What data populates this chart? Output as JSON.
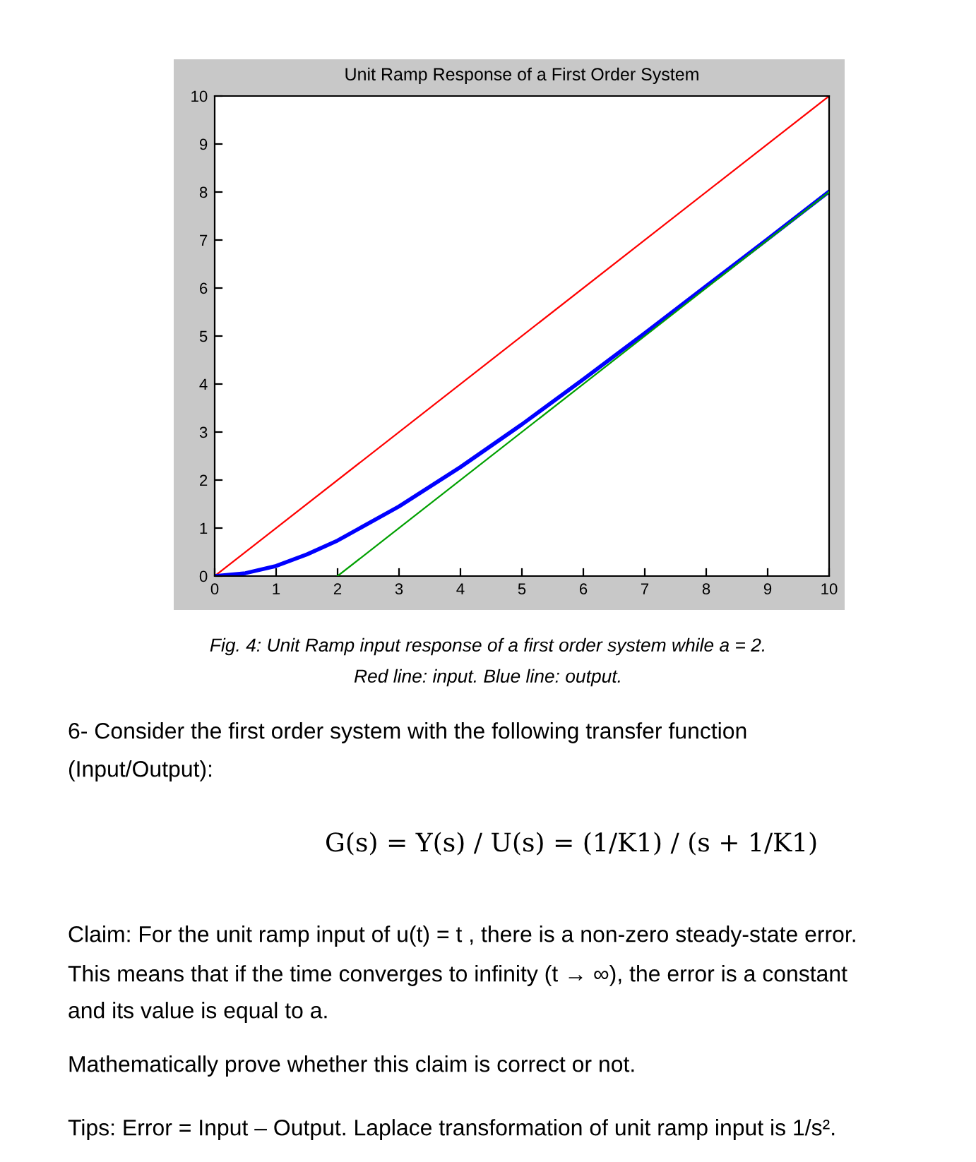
{
  "chart_data": {
    "type": "line",
    "title": "Unit Ramp Response of a First Order System",
    "xlim": [
      0,
      10
    ],
    "ylim": [
      0,
      10
    ],
    "xticks": [
      0,
      1,
      2,
      3,
      4,
      5,
      6,
      7,
      8,
      9,
      10
    ],
    "yticks": [
      0,
      1,
      2,
      3,
      4,
      5,
      6,
      7,
      8,
      9,
      10
    ],
    "grid": false,
    "legend": false,
    "series": [
      {
        "color": "#ff0000",
        "x": [
          0,
          10
        ],
        "values": [
          0,
          10
        ]
      },
      {
        "color": "#00a000",
        "x": [
          2,
          10
        ],
        "values": [
          0,
          8
        ]
      },
      {
        "color": "#0000ff",
        "x": [
          0,
          0.5,
          1,
          1.5,
          2,
          3,
          4,
          5,
          6,
          7,
          8,
          9,
          10
        ],
        "values": [
          0,
          0.06,
          0.21,
          0.45,
          0.74,
          1.45,
          2.27,
          3.16,
          4.1,
          5.06,
          6.04,
          7.02,
          8.01
        ]
      }
    ],
    "annotations": [
      "Fig. 4: Unit Ramp input response of a first order system while a = 2.",
      "Red line: input. Blue line: output.",
      "6- Consider the first order system with the following transfer function",
      "(Input/Output):",
      "G(s) = Y(s) / U(s) = (1/K1) / (s + 1/K1)",
      "Claim: For the unit ramp input of u(t) = t , there is a non-zero steady-state error.",
      "This means that if the time converges to infinity (t → ∞), the error is a constant",
      "and its value is equal to a.",
      "Mathematically prove whether this claim is correct or not.",
      "Tips: Error = Input – Output. Laplace transformation of unit ramp input is 1/s²."
    ]
  }
}
